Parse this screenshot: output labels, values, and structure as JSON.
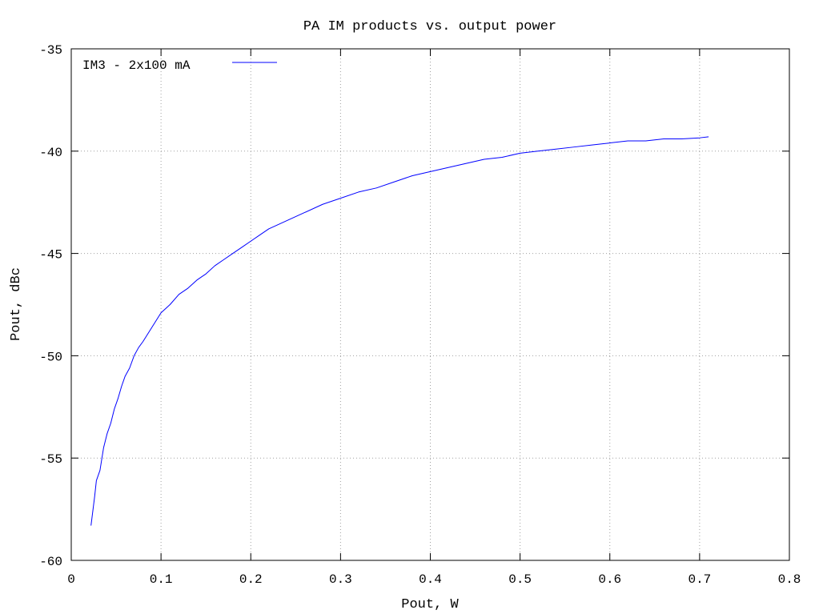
{
  "chart_data": {
    "type": "line",
    "title": "PA IM products vs. output power",
    "xlabel": "Pout, W",
    "ylabel": "Pout, dBc",
    "xlim": [
      0,
      0.8
    ],
    "ylim": [
      -60,
      -35
    ],
    "xticks": [
      0,
      0.1,
      0.2,
      0.3,
      0.4,
      0.5,
      0.6,
      0.7,
      0.8
    ],
    "xtick_labels": [
      "0",
      "0.1",
      "0.2",
      "0.3",
      "0.4",
      "0.5",
      "0.6",
      "0.7",
      "0.8"
    ],
    "yticks": [
      -60,
      -55,
      -50,
      -45,
      -40,
      -35
    ],
    "ytick_labels": [
      "-60",
      "-55",
      "-50",
      "-45",
      "-40",
      "-35"
    ],
    "grid": true,
    "legend_position": "top-left",
    "series": [
      {
        "name": "IM3 - 2x100 mA",
        "color": "#0000ff",
        "x": [
          0.022,
          0.026,
          0.028,
          0.032,
          0.036,
          0.04,
          0.044,
          0.048,
          0.052,
          0.056,
          0.06,
          0.065,
          0.07,
          0.075,
          0.08,
          0.09,
          0.1,
          0.11,
          0.12,
          0.13,
          0.14,
          0.15,
          0.16,
          0.17,
          0.18,
          0.19,
          0.2,
          0.21,
          0.22,
          0.23,
          0.24,
          0.26,
          0.28,
          0.3,
          0.32,
          0.34,
          0.36,
          0.38,
          0.4,
          0.42,
          0.44,
          0.46,
          0.48,
          0.5,
          0.52,
          0.54,
          0.56,
          0.58,
          0.6,
          0.62,
          0.64,
          0.66,
          0.68,
          0.7,
          0.71
        ],
        "y": [
          -58.3,
          -56.9,
          -56.1,
          -55.6,
          -54.5,
          -53.8,
          -53.3,
          -52.6,
          -52.1,
          -51.5,
          -51.0,
          -50.6,
          -50.0,
          -49.6,
          -49.3,
          -48.6,
          -47.9,
          -47.5,
          -47.0,
          -46.7,
          -46.3,
          -46.0,
          -45.6,
          -45.3,
          -45.0,
          -44.7,
          -44.4,
          -44.1,
          -43.8,
          -43.6,
          -43.4,
          -43.0,
          -42.6,
          -42.3,
          -42.0,
          -41.8,
          -41.5,
          -41.2,
          -41.0,
          -40.8,
          -40.6,
          -40.4,
          -40.3,
          -40.1,
          -40.0,
          -39.9,
          -39.8,
          -39.7,
          -39.6,
          -39.5,
          -39.5,
          -39.4,
          -39.4,
          -39.35,
          -39.3
        ]
      }
    ]
  }
}
